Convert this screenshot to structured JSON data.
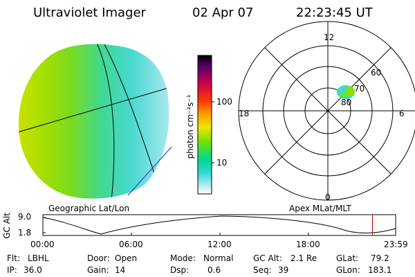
{
  "header": {
    "instrument": "Ultraviolet Imager",
    "date": "02 Apr 07",
    "time": "22:23:45 UT"
  },
  "left_panel": {
    "label": "Geographic Lat/Lon"
  },
  "colorbar": {
    "label": "photon cm⁻²s⁻¹",
    "scale": "log",
    "ticks": [
      "100",
      "10"
    ],
    "colors": [
      "#000000",
      "#5a0068",
      "#c8004f",
      "#ff3a00",
      "#ff9a00",
      "#e8e800",
      "#78e000",
      "#00d890",
      "#30d8d8",
      "#a8e8ee",
      "#ffffff"
    ]
  },
  "polar_panel": {
    "label": "Apex MLat/MLT",
    "mlt_labels": {
      "top": "12",
      "left": "18",
      "right": "6",
      "bottom": "0"
    },
    "lat_labels": [
      "60",
      "70",
      "80"
    ]
  },
  "altitude_plot": {
    "ylabel": "GC Alt",
    "yticks": [
      "9.0",
      "1.8"
    ],
    "xticks": [
      "00:00",
      "06:00",
      "12:00",
      "18:00",
      "23:59"
    ],
    "current_marker_time": "22:23",
    "marker_color": "#c00000"
  },
  "footer": {
    "flt_label": "Flt:",
    "flt_value": "LBHL",
    "ip_label": "IP:",
    "ip_value": "36.0",
    "door_label": "Door:",
    "door_value": "Open",
    "gain_label": "Gain:",
    "gain_value": "14",
    "mode_label": "Mode:",
    "mode_value": "Normal",
    "dsp_label": "Dsp:",
    "dsp_value": "0.6",
    "gcalt_label": "GC Alt:",
    "gcalt_value": "2.1 Re",
    "seq_label": "Seq:",
    "seq_value": "39",
    "glat_label": "GLat:",
    "glat_value": "79.2",
    "glon_label": "GLon:",
    "glon_value": "183.1"
  }
}
